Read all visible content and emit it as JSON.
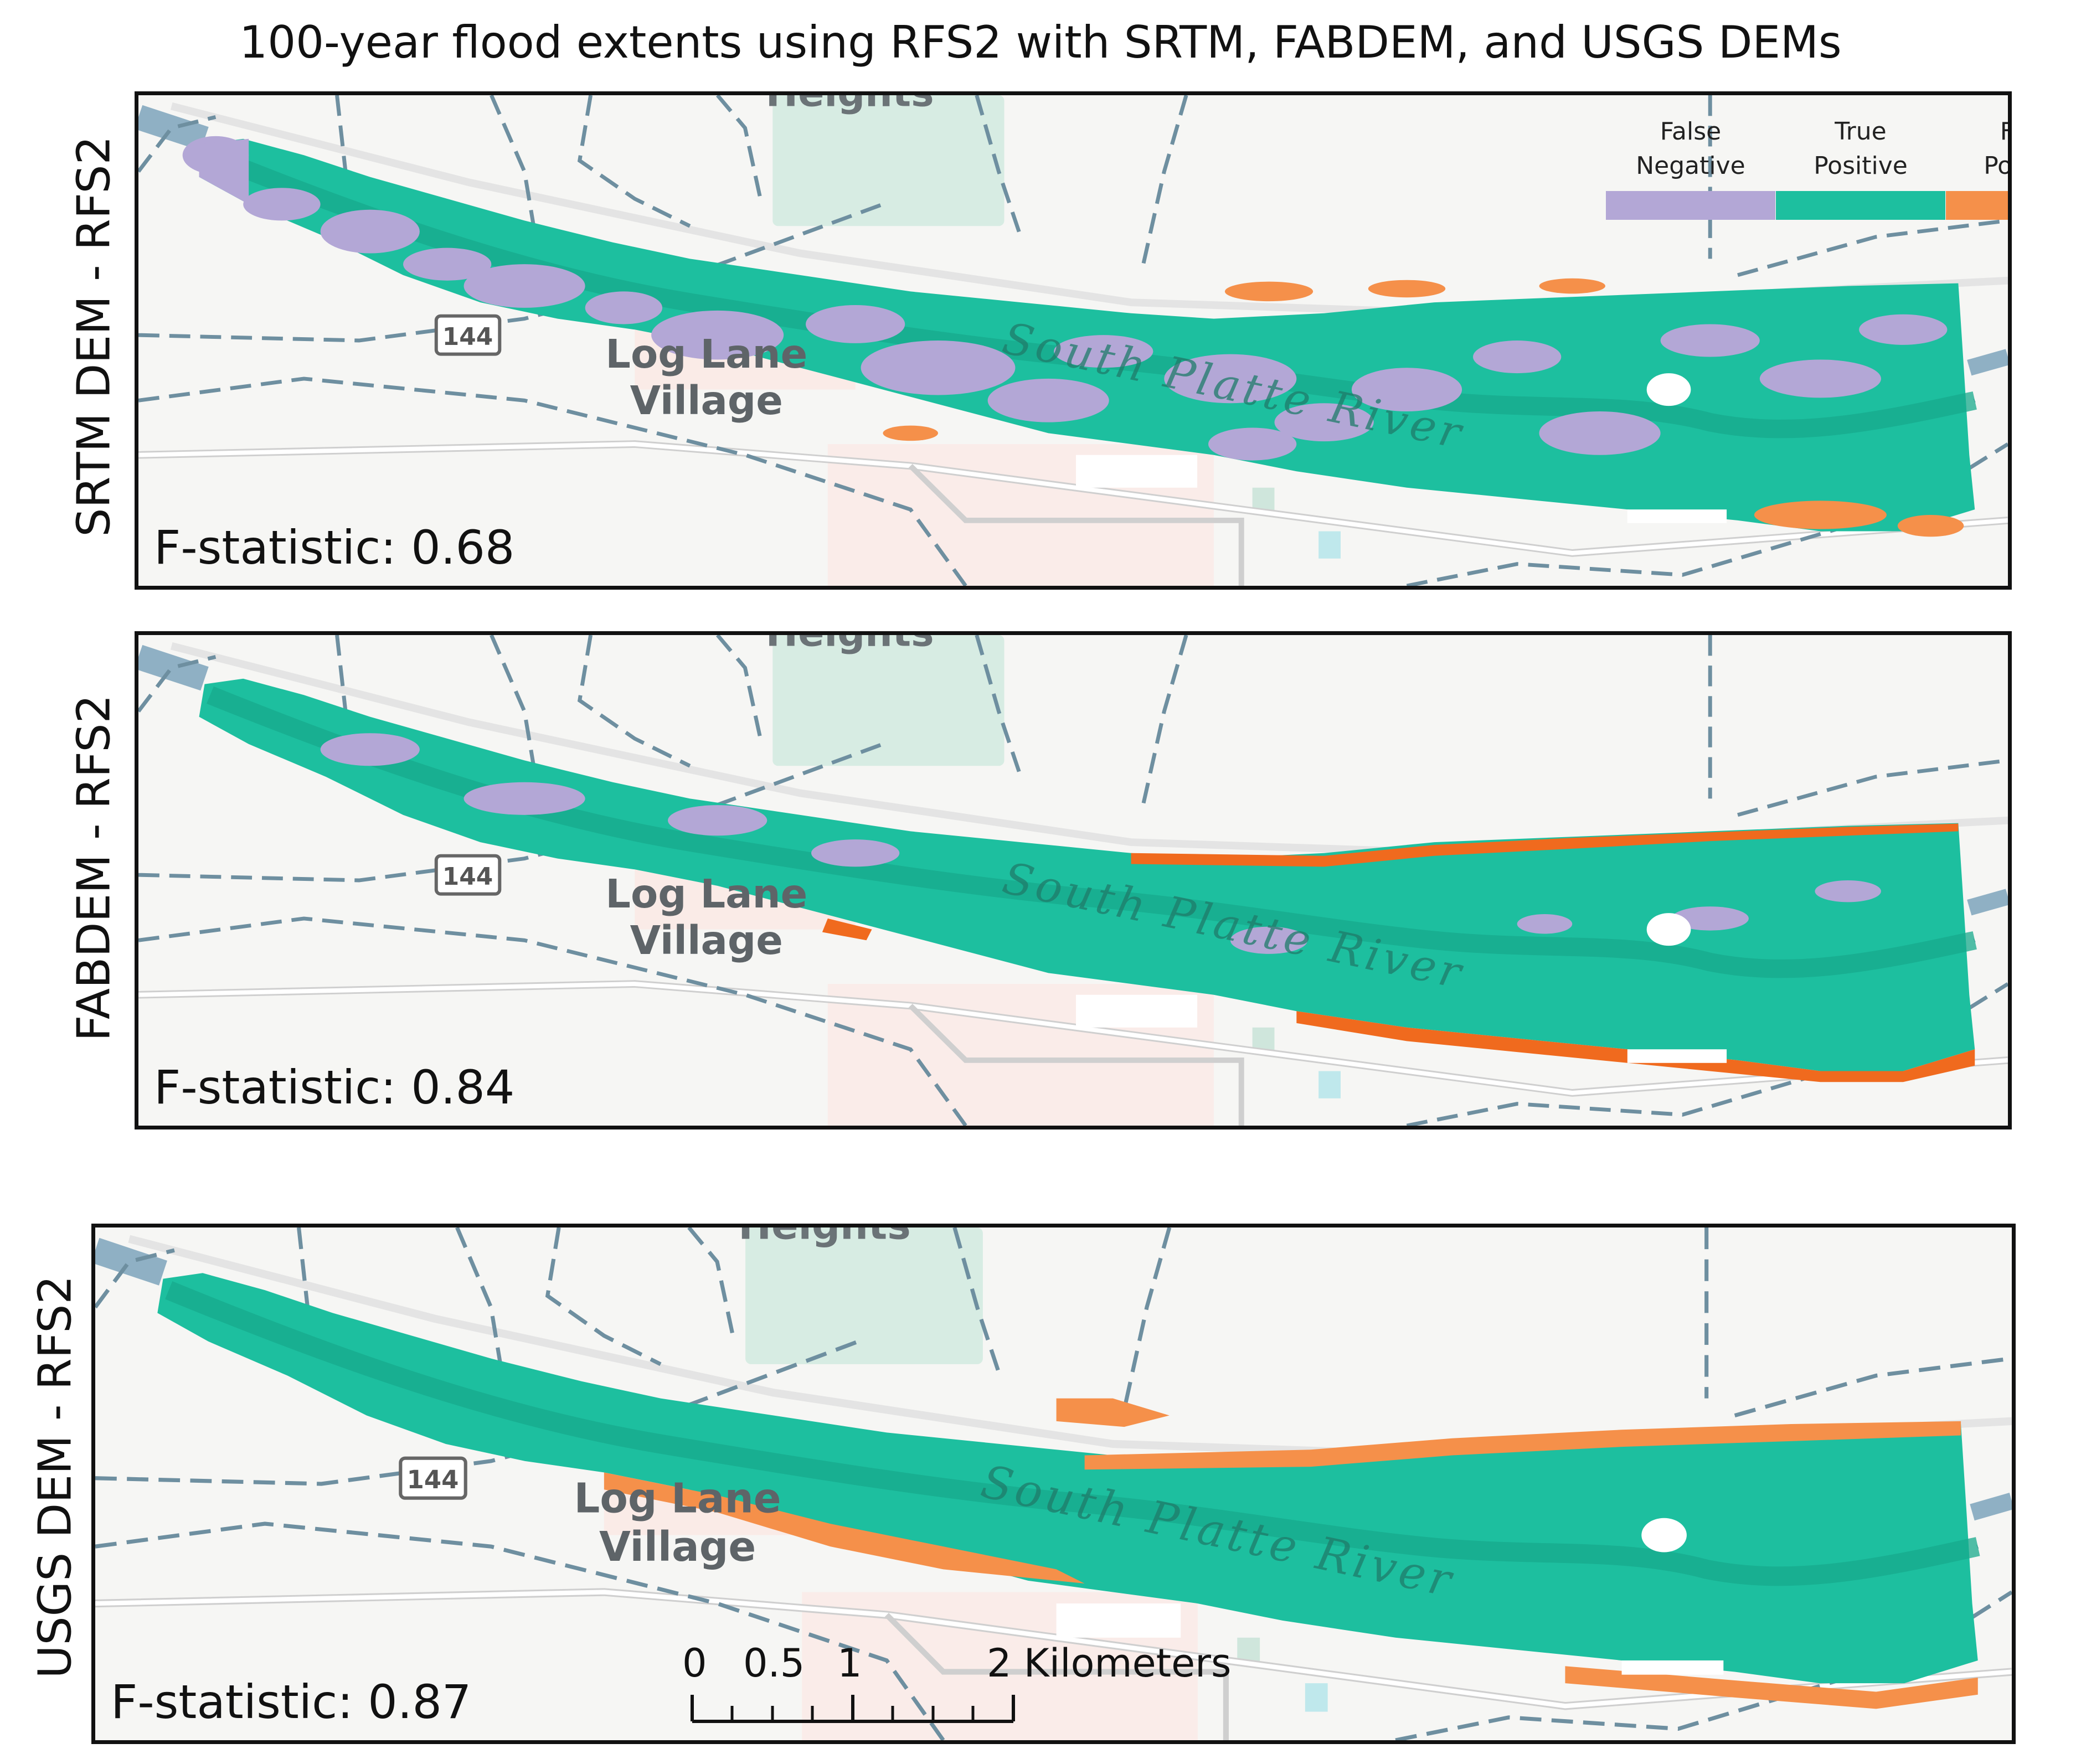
{
  "title": "100-year flood extents using RFS2 with SRTM, FABDEM, and USGS DEMs",
  "colors": {
    "false_negative": "#b3a7d6",
    "true_positive": "#1dbf9f",
    "false_positive": "#f5904a",
    "false_positive_vivid": "#f06a1e",
    "river": "#8fb0c4",
    "boundary": "#6e8fa0",
    "park": "#d7ece3",
    "basemap": "#f6f6f4"
  },
  "legend": {
    "items": [
      {
        "line1": "False",
        "line2": "Negative",
        "color": "#b3a7d6"
      },
      {
        "line1": "True",
        "line2": "Positive",
        "color": "#1dbf9f"
      },
      {
        "line1": "False",
        "line2": "Positive",
        "color": "#f5904a"
      }
    ]
  },
  "map_labels": {
    "place_top": "Heights",
    "town_line1": "Log Lane",
    "town_line2": "Village",
    "river": "South Platte River",
    "route_shield": "144"
  },
  "panels": [
    {
      "row_label": "SRTM DEM - RFS2",
      "f_statistic_text": "F-statistic: 0.68",
      "f_statistic": 0.68
    },
    {
      "row_label": "FABDEM - RFS2",
      "f_statistic_text": "F-statistic: 0.84",
      "f_statistic": 0.84
    },
    {
      "row_label": "USGS DEM - RFS2",
      "f_statistic_text": "F-statistic: 0.87",
      "f_statistic": 0.87
    }
  ],
  "scalebar": {
    "labels": [
      "0",
      "0.5",
      "1",
      "2 Kilometers"
    ],
    "unit": "Kilometers"
  }
}
